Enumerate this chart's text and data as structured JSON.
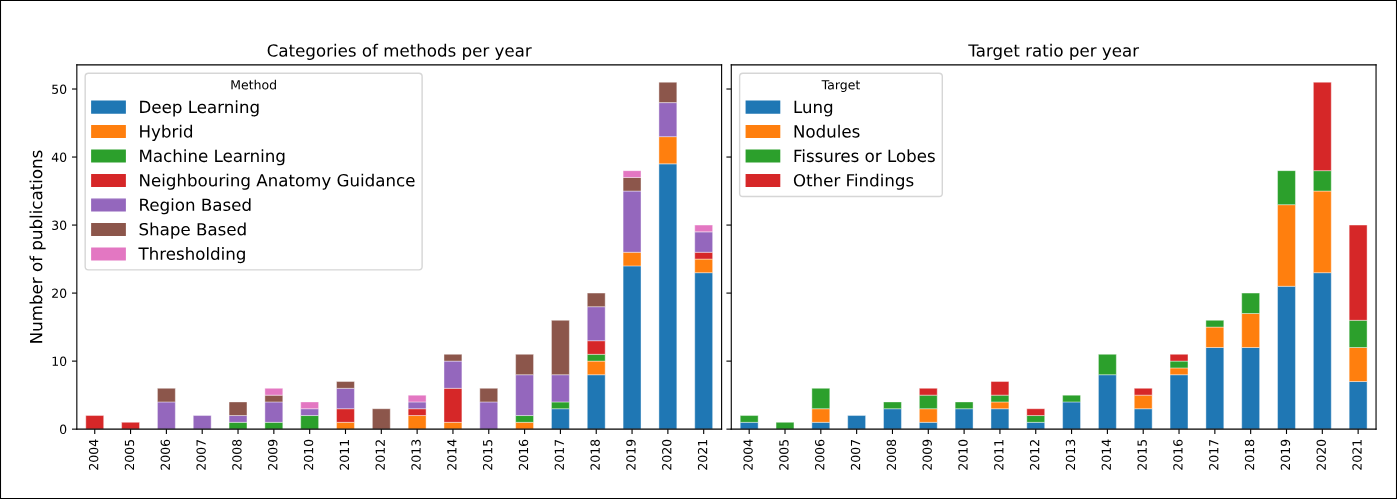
{
  "chart_data": [
    {
      "type": "bar",
      "title": "Categories of methods per year",
      "ylabel": "Number of publications",
      "stacked": true,
      "legend": "top left",
      "legend_title": "Method",
      "ylim": [
        0,
        53.55
      ],
      "yticks": [
        0,
        10,
        20,
        30,
        40,
        50
      ],
      "categories": [
        "2004",
        "2005",
        "2006",
        "2007",
        "2008",
        "2009",
        "2010",
        "2011",
        "2012",
        "2013",
        "2014",
        "2015",
        "2016",
        "2017",
        "2018",
        "2019",
        "2020",
        "2021"
      ],
      "series": [
        {
          "name": "Deep Learning",
          "color": "#1f77b4",
          "values": [
            null,
            null,
            null,
            null,
            null,
            null,
            null,
            null,
            null,
            null,
            null,
            null,
            null,
            3,
            8,
            24,
            39,
            23
          ]
        },
        {
          "name": "Hybrid",
          "color": "#ff7f0e",
          "values": [
            null,
            null,
            null,
            null,
            null,
            null,
            null,
            1,
            null,
            2,
            1,
            null,
            1,
            null,
            2,
            2,
            4,
            2
          ]
        },
        {
          "name": "Machine Learning",
          "color": "#2ca02c",
          "values": [
            null,
            null,
            null,
            null,
            1,
            1,
            2,
            null,
            null,
            null,
            null,
            null,
            1,
            1,
            1,
            null,
            null,
            null
          ]
        },
        {
          "name": "Neighbouring Anatomy Guidance",
          "color": "#d62728",
          "values": [
            2,
            1,
            null,
            null,
            null,
            null,
            null,
            2,
            null,
            1,
            5,
            null,
            null,
            null,
            2,
            null,
            null,
            1
          ]
        },
        {
          "name": "Region Based",
          "color": "#9467bd",
          "values": [
            null,
            null,
            4,
            2,
            1,
            3,
            1,
            3,
            null,
            1,
            4,
            4,
            6,
            4,
            5,
            9,
            5,
            3
          ]
        },
        {
          "name": "Shape Based",
          "color": "#8c564b",
          "values": [
            null,
            null,
            2,
            null,
            2,
            1,
            null,
            1,
            3,
            null,
            1,
            2,
            3,
            8,
            2,
            2,
            3,
            null
          ]
        },
        {
          "name": "Thresholding",
          "color": "#e377c2",
          "values": [
            null,
            null,
            null,
            null,
            null,
            1,
            1,
            null,
            null,
            1,
            null,
            null,
            null,
            null,
            null,
            1,
            null,
            1
          ]
        }
      ]
    },
    {
      "type": "bar",
      "title": "Target ratio per year",
      "stacked": true,
      "legend": "top left",
      "legend_title": "Target",
      "ylim": [
        0,
        53.55
      ],
      "yticks": [
        0,
        10,
        20,
        30,
        40,
        50
      ],
      "tick_labels": "x",
      "categories": [
        "2004",
        "2005",
        "2006",
        "2007",
        "2008",
        "2009",
        "2010",
        "2011",
        "2012",
        "2013",
        "2014",
        "2015",
        "2016",
        "2017",
        "2018",
        "2019",
        "2020",
        "2021"
      ],
      "series": [
        {
          "name": "Lung",
          "color": "#1f77b4",
          "values": [
            1,
            null,
            1,
            2,
            3,
            1,
            3,
            3,
            1,
            4,
            8,
            3,
            8,
            12,
            12,
            21,
            23,
            7
          ]
        },
        {
          "name": "Nodules",
          "color": "#ff7f0e",
          "values": [
            null,
            null,
            2,
            null,
            null,
            2,
            null,
            1,
            null,
            null,
            null,
            2,
            1,
            3,
            5,
            12,
            12,
            5
          ]
        },
        {
          "name": "Fissures or Lobes",
          "color": "#2ca02c",
          "values": [
            1,
            1,
            3,
            null,
            1,
            2,
            1,
            1,
            1,
            1,
            3,
            null,
            1,
            1,
            3,
            5,
            3,
            4
          ]
        },
        {
          "name": "Other Findings",
          "color": "#d62728",
          "values": [
            null,
            null,
            null,
            null,
            null,
            1,
            null,
            2,
            1,
            null,
            null,
            1,
            1,
            null,
            null,
            null,
            13,
            14
          ]
        }
      ]
    }
  ]
}
